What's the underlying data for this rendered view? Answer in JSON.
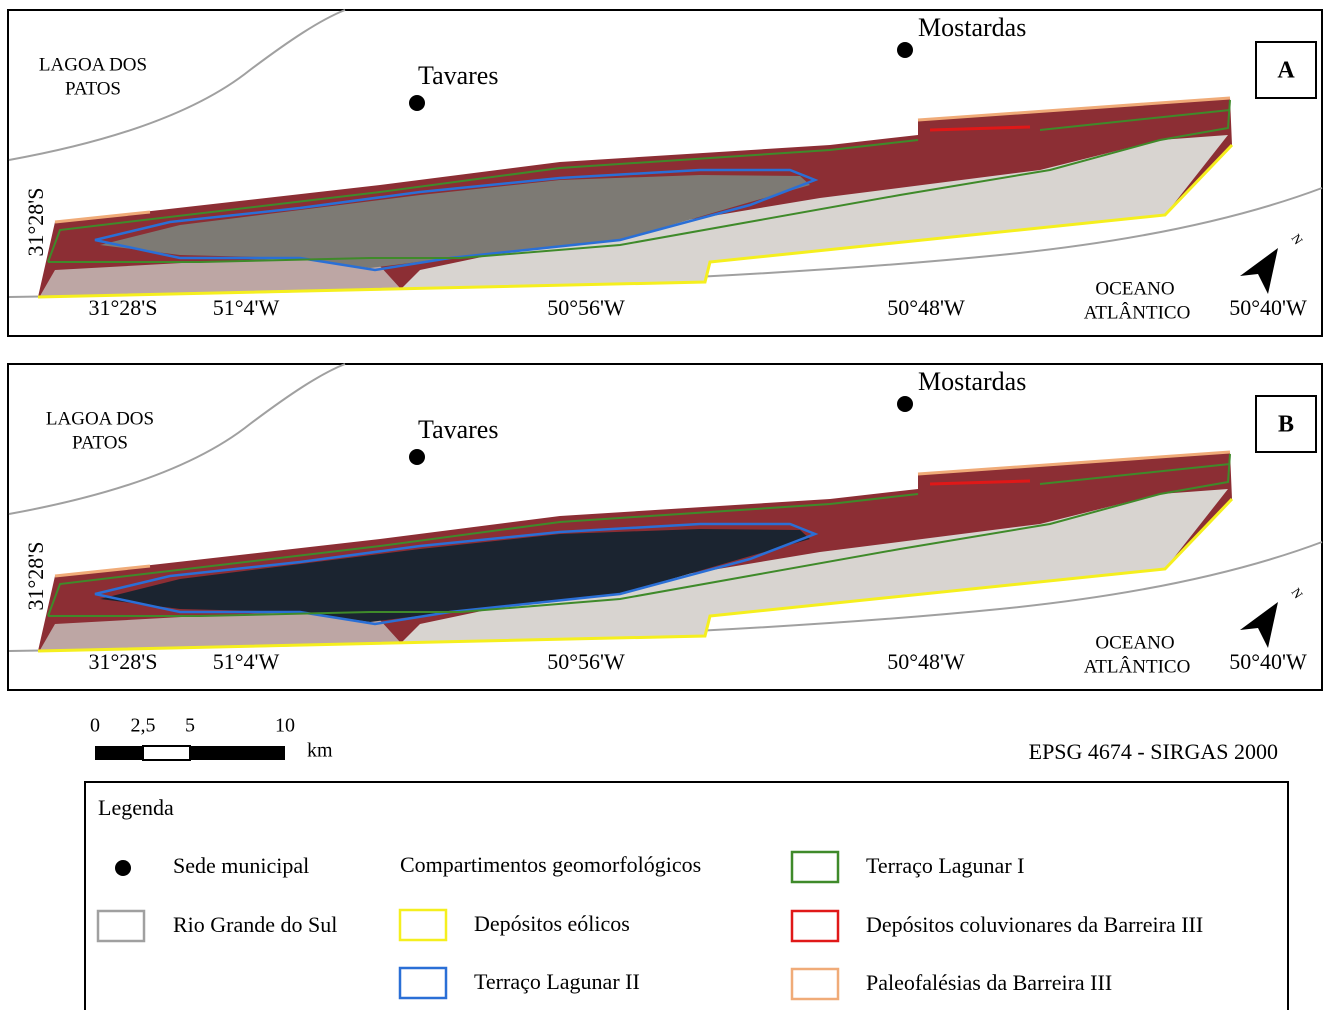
{
  "panels": [
    {
      "label": "A",
      "water_label": [
        "LAGOA DOS",
        "PATOS"
      ],
      "towns": [
        "Tavares",
        "Mostardas"
      ],
      "lat_label_vertical": "31°28'S",
      "coord_labels": [
        "31°28'S",
        "51°4'W",
        "50°56'W",
        "50°48'W",
        "50°40'W"
      ],
      "ocean_label": [
        "OCEANO",
        "ATLÂNTICO"
      ],
      "north": "N"
    },
    {
      "label": "B",
      "water_label": [
        "LAGOA DOS",
        "PATOS"
      ],
      "towns": [
        "Tavares",
        "Mostardas"
      ],
      "lat_label_vertical": "31°28'S",
      "coord_labels": [
        "31°28'S",
        "51°4'W",
        "50°56'W",
        "50°48'W",
        "50°40'W"
      ],
      "ocean_label": [
        "OCEANO",
        "ATLÂNTICO"
      ],
      "north": "N"
    }
  ],
  "scale_bar": {
    "ticks": [
      "0",
      "2,5",
      "5",
      "10"
    ],
    "unit": "km"
  },
  "crs": "EPSG 4674 - SIRGAS 2000",
  "legend": {
    "title": "Legenda",
    "group_title": "Compartimentos geomorfológicos",
    "items": [
      {
        "label": "Sede municipal",
        "color": "#000000"
      },
      {
        "label": "Rio Grande do Sul",
        "color": "#a0a0a0"
      },
      {
        "label": "Depósitos eólicos",
        "color": "#f5ef1e"
      },
      {
        "label": "Terraço Lagunar II",
        "color": "#2a6fd6"
      },
      {
        "label": "Terraço Lagunar I",
        "color": "#3f8a2a"
      },
      {
        "label": "Depósitos coluvionares da Barreira III",
        "color": "#e01818"
      },
      {
        "label": "Paleofalésias da Barreira III",
        "color": "#f0ab78"
      }
    ]
  }
}
